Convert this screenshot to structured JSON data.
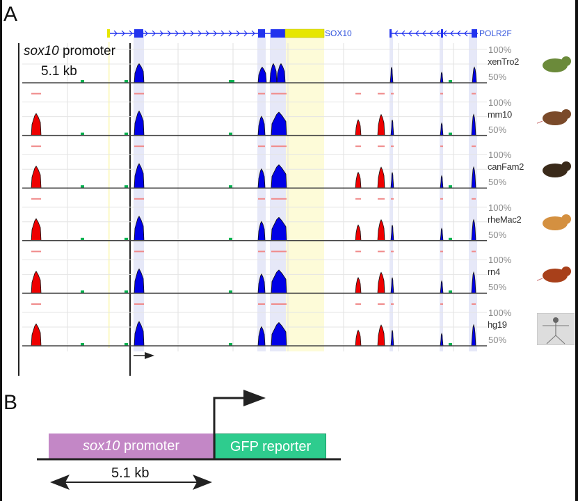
{
  "panel_a": {
    "label": "A",
    "promoter_label_italic": "sox10",
    "promoter_label_rest": " promoter",
    "promoter_size": "5.1 kb",
    "genes": [
      {
        "name": "SOX10",
        "strand": "-"
      },
      {
        "name": "POLR2F",
        "strand": "-"
      }
    ],
    "percent_top": "100%",
    "percent_bottom": "50%",
    "species": [
      {
        "id": "xenTro2",
        "label": "xenTro2",
        "animal": "frog-icon"
      },
      {
        "id": "mm10",
        "label": "mm10",
        "animal": "mouse-icon"
      },
      {
        "id": "canFam2",
        "label": "canFam2",
        "animal": "dog-icon"
      },
      {
        "id": "rheMac2",
        "label": "rheMac2",
        "animal": "monkey-icon"
      },
      {
        "id": "rn4",
        "label": "rn4",
        "animal": "rat-icon"
      },
      {
        "id": "hg19",
        "label": "hg19",
        "animal": "human-icon"
      }
    ],
    "colors": {
      "exon_peak": "#0000e6",
      "noncoding_peak": "#ee0000",
      "repeat_dot": "#00b050",
      "gene_model": "#2233ee",
      "utr": "#e6e600",
      "exon_shade": "#e6e8f8",
      "utr_shade": "#fdfbd8"
    }
  },
  "panel_b": {
    "label": "B",
    "promoter_italic": "sox10",
    "promoter_rest": " promoter",
    "reporter": "GFP reporter",
    "size": "5.1 kb",
    "colors": {
      "promoter": "#c387c6",
      "reporter": "#2ecc8e"
    }
  }
}
